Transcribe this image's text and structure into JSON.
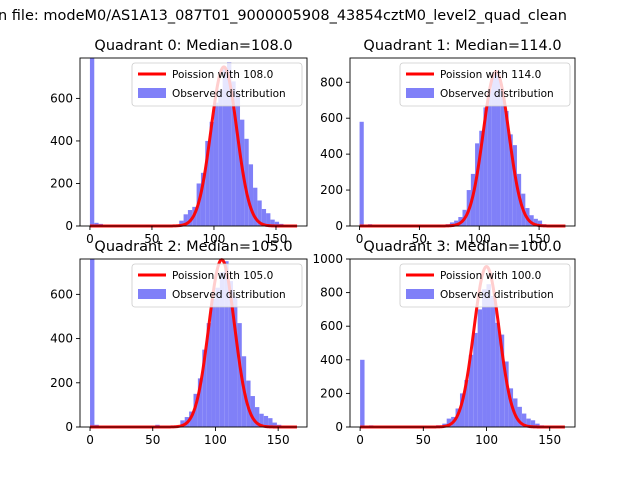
{
  "figure": {
    "suptitle": "n file: modeM0/AS1A13_087T01_9000005908_43854cztM0_level2_quad_clean"
  },
  "colors": {
    "hist": "#8080f8",
    "poisson": "#ff0000",
    "axis": "#000000"
  },
  "chart_data": [
    {
      "type": "bar",
      "title": "Quadrant 0: Median=108.0",
      "median": 108.0,
      "xlim": [
        -8,
        175
      ],
      "ylim": [
        0,
        790
      ],
      "xticks": [
        0,
        50,
        100,
        150
      ],
      "yticks": [
        0,
        200,
        400,
        600
      ],
      "bin_width": 3.5,
      "hist": [
        [
          0,
          790
        ],
        [
          3.5,
          15
        ],
        [
          7,
          10
        ],
        [
          45,
          5
        ],
        [
          65,
          5
        ],
        [
          72,
          25
        ],
        [
          75.5,
          55
        ],
        [
          79,
          75
        ],
        [
          82.5,
          90
        ],
        [
          86,
          200
        ],
        [
          89.5,
          250
        ],
        [
          93,
          400
        ],
        [
          96.5,
          490
        ],
        [
          100,
          580
        ],
        [
          103.5,
          640
        ],
        [
          107,
          740
        ],
        [
          110.5,
          770
        ],
        [
          114,
          680
        ],
        [
          117.5,
          620
        ],
        [
          121,
          500
        ],
        [
          124.5,
          410
        ],
        [
          128,
          290
        ],
        [
          131.5,
          180
        ],
        [
          135,
          120
        ],
        [
          138.5,
          80
        ],
        [
          142,
          60
        ],
        [
          145.5,
          30
        ],
        [
          149,
          20
        ],
        [
          152.5,
          10
        ],
        [
          156,
          5
        ]
      ],
      "poisson_peak": 748,
      "legend": {
        "line": "Poission with 108.0",
        "hist": "Observed distribution"
      }
    },
    {
      "type": "bar",
      "title": "Quadrant 1: Median=114.0",
      "median": 114.0,
      "xlim": [
        -8,
        180
      ],
      "ylim": [
        0,
        935
      ],
      "xticks": [
        0,
        50,
        100,
        150
      ],
      "yticks": [
        0,
        200,
        400,
        600,
        800
      ],
      "bin_width": 3.5,
      "hist": [
        [
          0,
          580
        ],
        [
          7,
          10
        ],
        [
          65,
          5
        ],
        [
          72,
          10
        ],
        [
          75.5,
          20
        ],
        [
          79,
          30
        ],
        [
          82.5,
          50
        ],
        [
          86,
          90
        ],
        [
          89.5,
          200
        ],
        [
          93,
          290
        ],
        [
          96.5,
          460
        ],
        [
          100,
          530
        ],
        [
          103.5,
          660
        ],
        [
          107,
          760
        ],
        [
          110.5,
          850
        ],
        [
          114,
          860
        ],
        [
          117.5,
          760
        ],
        [
          121,
          640
        ],
        [
          124.5,
          510
        ],
        [
          128,
          450
        ],
        [
          131.5,
          290
        ],
        [
          135,
          180
        ],
        [
          138.5,
          100
        ],
        [
          142,
          60
        ],
        [
          145.5,
          40
        ],
        [
          149,
          30
        ],
        [
          152.5,
          10
        ]
      ],
      "poisson_peak": 860,
      "legend": {
        "line": "Poission with 114.0",
        "hist": "Observed distribution"
      }
    },
    {
      "type": "bar",
      "title": "Quadrant 2: Median=105.0",
      "median": 105.0,
      "xlim": [
        -8,
        173
      ],
      "ylim": [
        0,
        760
      ],
      "xticks": [
        0,
        50,
        100,
        150
      ],
      "yticks": [
        0,
        200,
        400,
        600
      ],
      "bin_width": 3.5,
      "hist": [
        [
          0,
          760
        ],
        [
          3.5,
          10
        ],
        [
          52,
          10
        ],
        [
          65,
          5
        ],
        [
          72,
          30
        ],
        [
          75.5,
          45
        ],
        [
          79,
          70
        ],
        [
          82.5,
          150
        ],
        [
          86,
          220
        ],
        [
          89.5,
          350
        ],
        [
          93,
          470
        ],
        [
          96.5,
          580
        ],
        [
          100,
          630
        ],
        [
          103.5,
          700
        ],
        [
          107,
          750
        ],
        [
          110.5,
          660
        ],
        [
          114,
          590
        ],
        [
          117.5,
          470
        ],
        [
          121,
          320
        ],
        [
          124.5,
          210
        ],
        [
          128,
          140
        ],
        [
          131.5,
          90
        ],
        [
          135,
          60
        ],
        [
          138.5,
          50
        ],
        [
          142,
          40
        ],
        [
          145.5,
          20
        ],
        [
          149,
          10
        ]
      ],
      "poisson_peak": 757,
      "legend": {
        "line": "Poission with 105.0",
        "hist": "Observed distribution"
      }
    },
    {
      "type": "bar",
      "title": "Quadrant 3: Median=100.0",
      "median": 100.0,
      "xlim": [
        -8,
        170
      ],
      "ylim": [
        0,
        1000
      ],
      "xticks": [
        0,
        50,
        100,
        150
      ],
      "yticks": [
        0,
        200,
        400,
        600,
        800,
        1000
      ],
      "bin_width": 3.5,
      "hist": [
        [
          0,
          400
        ],
        [
          7,
          10
        ],
        [
          60,
          10
        ],
        [
          65,
          20
        ],
        [
          68.5,
          50
        ],
        [
          72,
          60
        ],
        [
          75.5,
          110
        ],
        [
          79,
          200
        ],
        [
          82.5,
          280
        ],
        [
          86,
          430
        ],
        [
          89.5,
          560
        ],
        [
          93,
          700
        ],
        [
          96.5,
          820
        ],
        [
          100,
          850
        ],
        [
          103.5,
          780
        ],
        [
          107,
          620
        ],
        [
          110.5,
          550
        ],
        [
          114,
          390
        ],
        [
          117.5,
          230
        ],
        [
          121,
          170
        ],
        [
          124.5,
          120
        ],
        [
          128,
          80
        ],
        [
          131.5,
          50
        ],
        [
          135,
          40
        ],
        [
          138.5,
          20
        ],
        [
          142,
          10
        ]
      ],
      "poisson_peak": 955,
      "legend": {
        "line": "Poission with 100.0",
        "hist": "Observed distribution"
      }
    }
  ]
}
